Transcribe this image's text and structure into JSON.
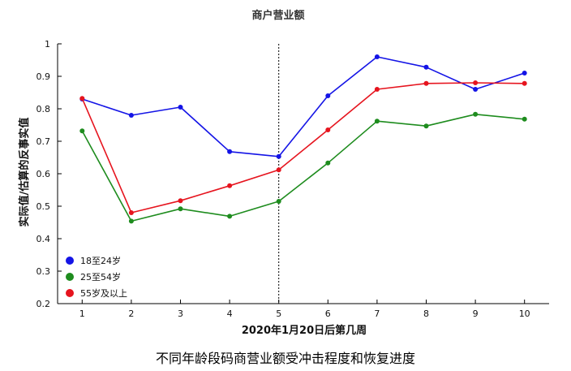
{
  "chart_data": {
    "type": "line",
    "title": "商户营业额",
    "xlabel": "2020年1月20日后第几周",
    "ylabel": "实际值/估算的反事实值",
    "x": [
      1,
      2,
      3,
      4,
      5,
      6,
      7,
      8,
      9,
      10
    ],
    "xlim": [
      0.5,
      10.5
    ],
    "ylim": [
      0.2,
      1.0
    ],
    "yticks": [
      0.2,
      0.3,
      0.4,
      0.5,
      0.6,
      0.7,
      0.8,
      0.9,
      1
    ],
    "ytick_labels": [
      "0.2",
      "0.3",
      "0.4",
      "0.5",
      "0.6",
      "0.7",
      "0.8",
      "0.9",
      "1"
    ],
    "vline_x": 5,
    "grid": false,
    "legend_position": "bottom-left",
    "series": [
      {
        "name": "18至24岁",
        "color": "#1414e6",
        "values": [
          0.83,
          0.78,
          0.805,
          0.668,
          0.653,
          0.84,
          0.96,
          0.928,
          0.86,
          0.91
        ]
      },
      {
        "name": "25至54岁",
        "color": "#1e8c1e",
        "values": [
          0.732,
          0.454,
          0.492,
          0.469,
          0.515,
          0.633,
          0.762,
          0.747,
          0.783,
          0.768
        ]
      },
      {
        "name": "55岁及以上",
        "color": "#e6141e",
        "values": [
          0.832,
          0.48,
          0.517,
          0.563,
          0.612,
          0.735,
          0.86,
          0.878,
          0.88,
          0.878
        ]
      }
    ]
  },
  "caption": "不同年龄段码商营业额受冲击程度和恢复进度"
}
